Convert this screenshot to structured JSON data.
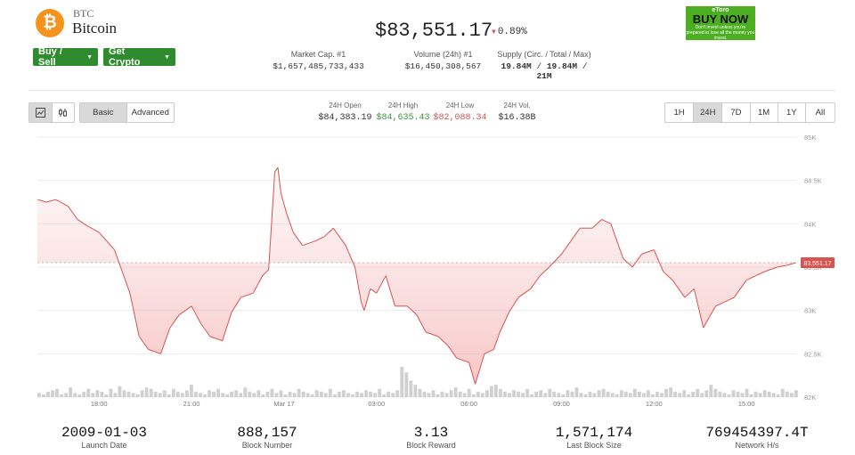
{
  "coin": {
    "symbol": "BTC",
    "name": "Bitcoin",
    "icon": "bitcoin-icon",
    "glyph": "₿"
  },
  "actions": {
    "buy_sell": "Buy / Sell",
    "get_crypto": "Get Crypto"
  },
  "price": {
    "value": "$83,551.17",
    "change": "0.89%",
    "direction": "down"
  },
  "ad": {
    "brand": "eToro",
    "cta": "BUY NOW",
    "disclaimer": "Don't invest unless you're prepared to lose all the money you invest."
  },
  "stats": {
    "market_cap": {
      "label": "Market Cap. #1",
      "value": "$1,657,485,733,433"
    },
    "volume": {
      "label": "Volume (24h) #1",
      "value": "$16,450,308,567"
    },
    "supply": {
      "label": "Supply (Circ. / Total / Max)",
      "circ": "19.84M",
      "total": "19.84M",
      "max": "21M",
      "sep": "/"
    }
  },
  "toolbar": {
    "chart_types": [
      "line-chart-icon",
      "candlestick-icon"
    ],
    "modes": [
      "Basic",
      "Advanced"
    ],
    "active_mode": "Basic",
    "ranges": [
      "1H",
      "24H",
      "7D",
      "1M",
      "1Y",
      "All"
    ],
    "active_range": "24H"
  },
  "ohlc": {
    "open": {
      "label": "24H Open",
      "value": "$84,383.19"
    },
    "high": {
      "label": "24H High",
      "value": "$84,635.43"
    },
    "low": {
      "label": "24H Low",
      "value": "$82,088.34"
    },
    "vol": {
      "label": "24H Vol.",
      "value": "$16.38B"
    }
  },
  "colors": {
    "green": "#2e8b2e",
    "up": "#3a9a3a",
    "down": "#d9534f",
    "brand": "#f7931a"
  },
  "chart_data": {
    "type": "area",
    "y_ticks": [
      "85K",
      "84.5K",
      "84K",
      "83.5K",
      "83K",
      "82.5K",
      "82K"
    ],
    "y_tick_values": [
      85000,
      84500,
      84000,
      83500,
      83000,
      82500,
      82000
    ],
    "ylim": [
      82000,
      85000
    ],
    "x_ticks": [
      "18:00",
      "21:00",
      "Mar 17",
      "03:00",
      "06:00",
      "09:00",
      "12:00",
      "15:00"
    ],
    "x_tick_hours": [
      2.0,
      5.0,
      8.0,
      11.0,
      14.0,
      17.0,
      20.0,
      23.0
    ],
    "x_range_hours": [
      0,
      24.7
    ],
    "current_price_label": "83,551.17",
    "current_price": 83551.17,
    "grid": true,
    "series": [
      {
        "x": [
          0,
          0.3,
          0.6,
          1.0,
          1.3,
          1.6,
          2.0,
          2.5,
          3.0,
          3.3,
          3.6,
          4.0,
          4.3,
          4.6,
          5.0,
          5.3,
          5.6,
          6.0,
          6.3,
          6.6,
          7.0,
          7.3,
          7.5,
          7.7,
          7.8,
          7.9,
          8.1,
          8.3,
          8.6,
          9.0,
          9.3,
          9.6,
          10.0,
          10.3,
          10.5,
          10.6,
          10.8,
          11.0,
          11.3,
          11.6,
          12.0,
          12.3,
          12.6,
          13.0,
          13.3,
          13.6,
          14.0,
          14.2,
          14.5,
          14.8,
          15.0,
          15.3,
          15.6,
          16.0,
          16.3,
          16.6,
          17.0,
          17.3,
          17.6,
          18.0,
          18.3,
          18.6,
          19.0,
          19.3,
          19.6,
          20.0,
          20.3,
          20.6,
          21.0,
          21.3,
          21.6,
          22.0,
          22.3,
          22.6,
          23.0,
          23.3,
          23.6,
          24.0,
          24.3,
          24.6
        ],
        "y": [
          84280,
          84250,
          84280,
          84200,
          84050,
          83980,
          83900,
          83700,
          83200,
          82700,
          82550,
          82500,
          82800,
          82950,
          83050,
          82850,
          82700,
          82650,
          82980,
          83150,
          83200,
          83400,
          83470,
          84600,
          84650,
          84350,
          84100,
          83900,
          83750,
          83800,
          83850,
          83950,
          83750,
          83500,
          83100,
          83000,
          83250,
          83200,
          83400,
          83050,
          83050,
          82950,
          82750,
          82700,
          82600,
          82450,
          82400,
          82150,
          82500,
          82550,
          82750,
          82980,
          83150,
          83250,
          83400,
          83500,
          83650,
          83800,
          83950,
          83950,
          84050,
          84000,
          83600,
          83500,
          83650,
          83700,
          83450,
          83350,
          83150,
          83250,
          82800,
          83050,
          83100,
          83150,
          83350,
          83400,
          83450,
          83500,
          83520,
          83551
        ]
      }
    ],
    "volume_bars": [
      3,
      2,
      4,
      5,
      6,
      2,
      3,
      7,
      3,
      2,
      4,
      6,
      3,
      5,
      4,
      2,
      6,
      3,
      8,
      5,
      4,
      3,
      2,
      5,
      7,
      6,
      4,
      3,
      5,
      2,
      6,
      4,
      3,
      5,
      9,
      4,
      3,
      2,
      5,
      4,
      6,
      3,
      2,
      4,
      5,
      3,
      7,
      4,
      3,
      5,
      2,
      4,
      6,
      3,
      5,
      2,
      4,
      3,
      6,
      4,
      3,
      2,
      5,
      4,
      3,
      6,
      2,
      4,
      5,
      3,
      2,
      4,
      3,
      5,
      4,
      3,
      6,
      2,
      4,
      3,
      5,
      22,
      18,
      12,
      9,
      6,
      4,
      3,
      5,
      2,
      4,
      3,
      5,
      7,
      4,
      3,
      6,
      2,
      4,
      3,
      5,
      8,
      9,
      6,
      4,
      3,
      5,
      4,
      3,
      6,
      2,
      4,
      5,
      3,
      6,
      4,
      3,
      2,
      5,
      4,
      7,
      3,
      2,
      4,
      3,
      5,
      6,
      4,
      3,
      2,
      5,
      4,
      3,
      6,
      4,
      3,
      5,
      2,
      4,
      3,
      6,
      7,
      4,
      3,
      5,
      2,
      4,
      6,
      3,
      5,
      9,
      6,
      4,
      3,
      2,
      5,
      4,
      3,
      6,
      2,
      4,
      3,
      5,
      4,
      3,
      2,
      6,
      4,
      3,
      5
    ]
  },
  "footer": [
    {
      "value": "2009-01-03",
      "label": "Launch Date"
    },
    {
      "value": "888,157",
      "label": "Block Number"
    },
    {
      "value": "3.13",
      "label": "Block Reward"
    },
    {
      "value": "1,571,174",
      "label": "Last Block Size"
    },
    {
      "value": "769454397.4T",
      "label": "Network H/s"
    }
  ]
}
